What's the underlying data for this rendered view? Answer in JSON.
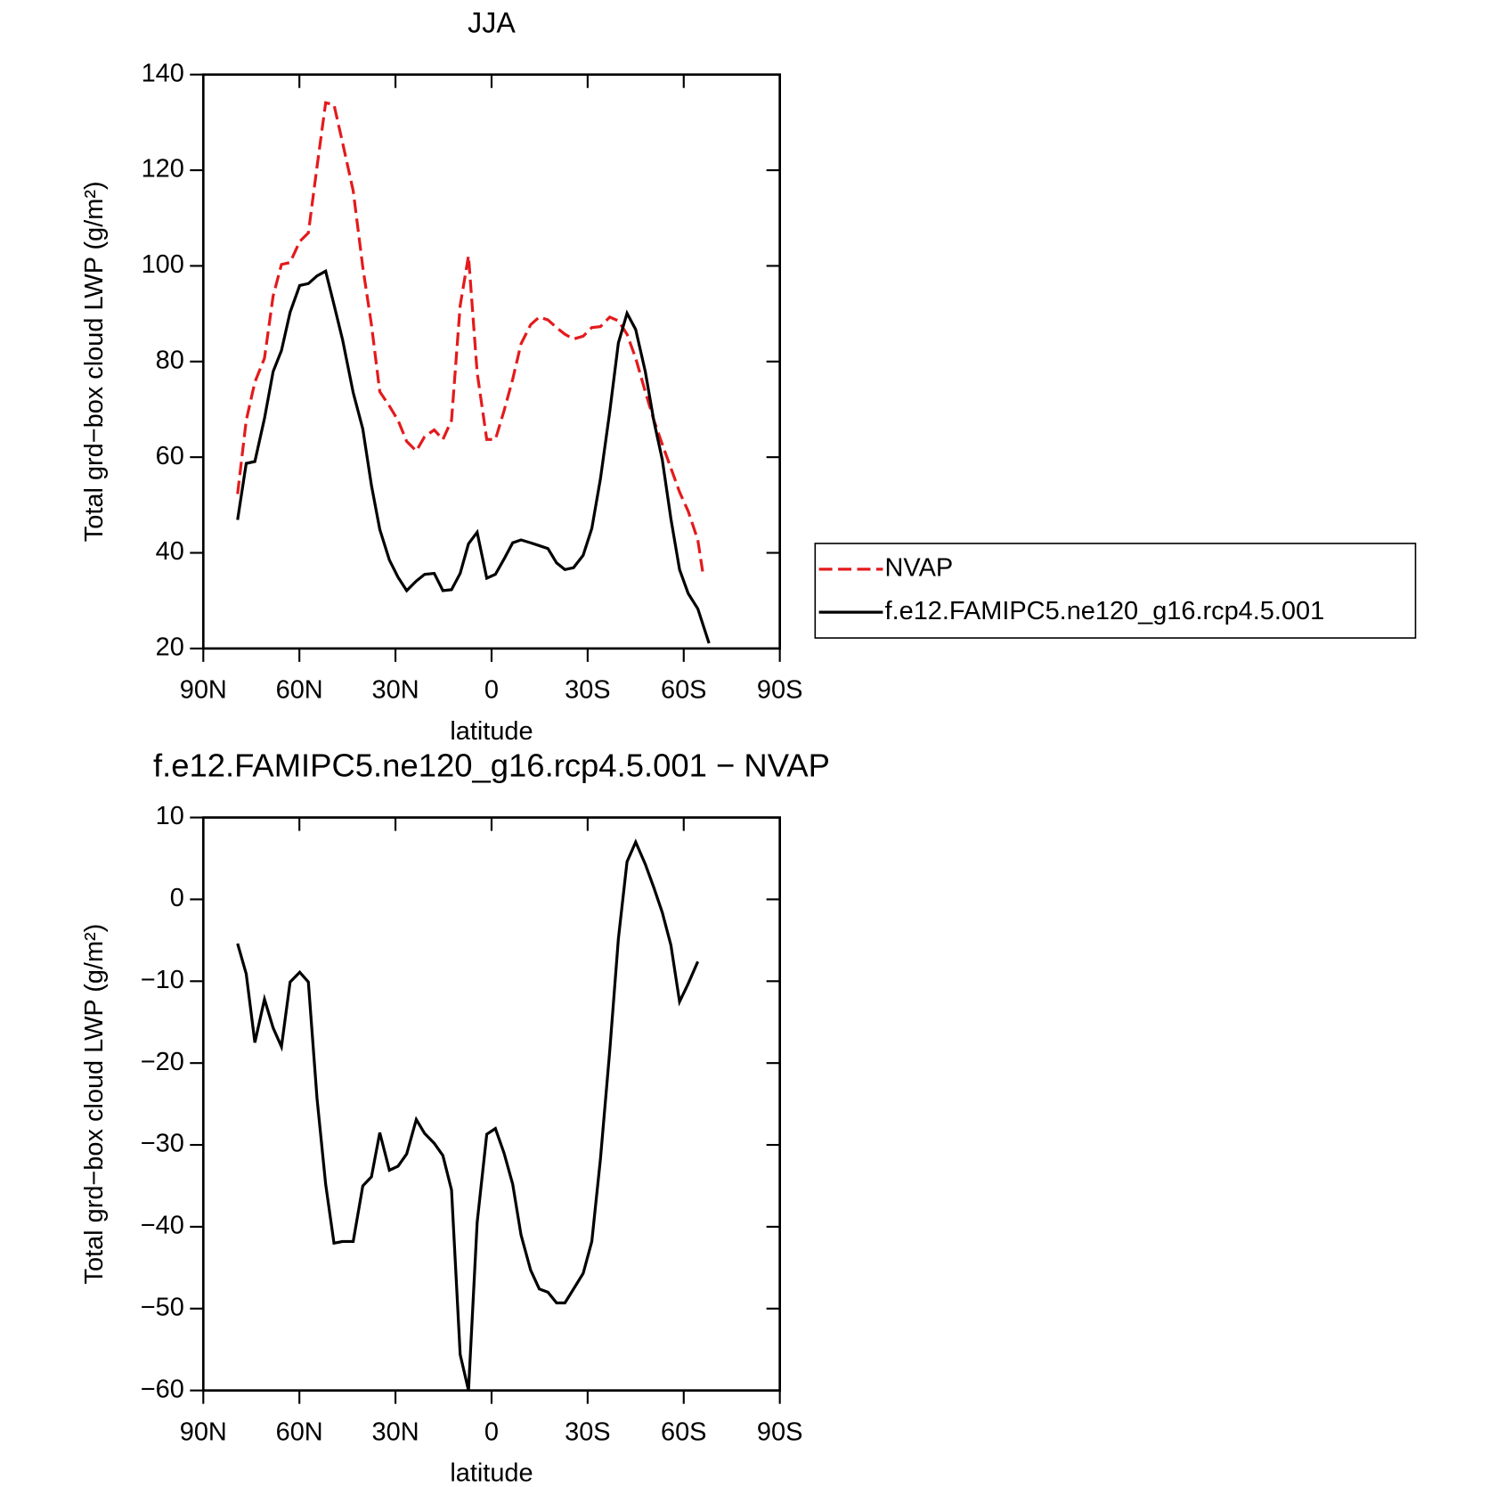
{
  "chart_data": [
    {
      "type": "line",
      "title": "JJA",
      "xlabel": "latitude",
      "ylabel": "Total grd−box cloud LWP (g/m²)",
      "xlim": [
        90,
        -90
      ],
      "xticks": [
        {
          "value": 90,
          "label": "90N"
        },
        {
          "value": 60,
          "label": "60N"
        },
        {
          "value": 30,
          "label": "30N"
        },
        0,
        {
          "value": -30,
          "label": "30S"
        },
        {
          "value": -60,
          "label": "60S"
        },
        {
          "value": -90,
          "label": "90S"
        }
      ],
      "ylim": [
        20,
        140
      ],
      "yticks": [
        20,
        40,
        60,
        80,
        100,
        120,
        140
      ],
      "legend": "right",
      "series": [
        {
          "name": "NVAP",
          "color": "#e41a1c",
          "style": "dashed",
          "x": [
            79.3,
            76.6,
            73.9,
            70.9,
            68.2,
            65.6,
            62.9,
            59.9,
            57.2,
            54.5,
            51.8,
            49.2,
            46.5,
            43.2,
            40.2,
            37.5,
            34.9,
            31.9,
            29.2,
            26.5,
            23.5,
            20.9,
            17.9,
            15.2,
            12.5,
            9.8,
            7.2,
            4.5,
            1.5,
            -1.2,
            -3.9,
            -6.6,
            -9.2,
            -12.2,
            -14.9,
            -17.6,
            -20.3,
            -22.9,
            -25.6,
            -28.6,
            -31.3,
            -34.0,
            -36.9,
            -39.6,
            -42.3,
            -45.0,
            -48.0,
            -50.7,
            -53.3,
            -56.0,
            -58.7,
            -61.4,
            -64.4,
            -65.9
          ],
          "values": [
            52.3,
            67.7,
            75.7,
            80.7,
            93.7,
            100.3,
            100.7,
            105.1,
            106.9,
            120.7,
            134.1,
            133.7,
            125.7,
            115.7,
            99.7,
            87.7,
            73.7,
            70.7,
            67.7,
            63.3,
            61.3,
            64.3,
            65.7,
            63.7,
            67.7,
            91.7,
            102.1,
            77.7,
            63.7,
            63.7,
            69.7,
            76.3,
            83.7,
            87.7,
            89.3,
            88.7,
            87.1,
            85.7,
            84.7,
            85.3,
            87.1,
            87.3,
            89.3,
            88.5,
            85.7,
            80.7,
            73.7,
            67.7,
            62.7,
            57.7,
            52.7,
            48.7,
            42.7,
            36.1
          ]
        },
        {
          "name": "f.e12.FAMIPC5.ne120_g16.rcp4.5.001",
          "color": "#000000",
          "style": "solid",
          "x": [
            79.3,
            76.6,
            73.9,
            70.9,
            68.2,
            65.6,
            62.9,
            59.9,
            57.2,
            54.5,
            51.8,
            49.2,
            46.5,
            43.2,
            40.2,
            37.5,
            34.9,
            31.9,
            29.2,
            26.5,
            23.5,
            20.9,
            17.9,
            15.2,
            12.5,
            9.8,
            7.2,
            4.5,
            1.5,
            -1.2,
            -3.9,
            -6.6,
            -9.2,
            -12.2,
            -14.9,
            -17.6,
            -20.3,
            -22.9,
            -25.6,
            -28.6,
            -31.3,
            -34.0,
            -36.9,
            -39.6,
            -42.3,
            -45.0,
            -48.0,
            -50.7,
            -53.3,
            -56.0,
            -58.7,
            -61.4,
            -64.4,
            -67.9
          ],
          "values": [
            46.9,
            58.7,
            59.1,
            68.1,
            77.9,
            82.3,
            90.3,
            95.9,
            96.3,
            97.9,
            98.9,
            91.9,
            84.5,
            73.5,
            65.9,
            54.1,
            44.9,
            38.5,
            34.9,
            32.1,
            34.1,
            35.5,
            35.7,
            32.1,
            32.3,
            35.7,
            41.9,
            44.3,
            34.7,
            35.5,
            38.7,
            42.1,
            42.7,
            42.1,
            41.5,
            40.9,
            37.9,
            36.5,
            36.9,
            39.5,
            45.1,
            55.5,
            69.5,
            83.9,
            90.1,
            86.7,
            77.9,
            67.5,
            59.5,
            47.1,
            36.5,
            31.5,
            28.3,
            21.1
          ]
        }
      ]
    },
    {
      "type": "line",
      "title": "f.e12.FAMIPC5.ne120_g16.rcp4.5.001 − NVAP",
      "xlabel": "latitude",
      "ylabel": "Total grd−box cloud LWP (g/m²)",
      "xlim": [
        90,
        -90
      ],
      "xticks": [
        {
          "value": 90,
          "label": "90N"
        },
        {
          "value": 60,
          "label": "60N"
        },
        {
          "value": 30,
          "label": "30N"
        },
        0,
        {
          "value": -30,
          "label": "30S"
        },
        {
          "value": -60,
          "label": "60S"
        },
        {
          "value": -90,
          "label": "90S"
        }
      ],
      "ylim": [
        -60,
        10
      ],
      "yticks": [
        {
          "value": -60,
          "label": "−60"
        },
        {
          "value": -50,
          "label": "−50"
        },
        {
          "value": -40,
          "label": "−40"
        },
        {
          "value": -30,
          "label": "−30"
        },
        {
          "value": -20,
          "label": "−20"
        },
        {
          "value": -10,
          "label": "−10"
        },
        0,
        10
      ],
      "series": [
        {
          "color": "#000000",
          "style": "solid",
          "x": [
            79.3,
            76.6,
            73.9,
            70.9,
            68.2,
            65.6,
            62.9,
            59.9,
            57.2,
            54.5,
            51.8,
            49.2,
            46.5,
            43.2,
            40.2,
            37.5,
            34.9,
            31.9,
            29.2,
            26.5,
            23.5,
            20.9,
            17.9,
            15.2,
            12.5,
            9.8,
            7.2,
            4.5,
            1.5,
            -1.2,
            -3.9,
            -6.6,
            -9.2,
            -12.2,
            -14.9,
            -17.6,
            -20.3,
            -22.9,
            -25.6,
            -28.6,
            -31.3,
            -34.0,
            -36.9,
            -39.6,
            -42.3,
            -45.0,
            -48.0,
            -50.7,
            -53.3,
            -56.0,
            -58.7,
            -61.4,
            -64.4
          ],
          "values": [
            -5.4,
            -9.1,
            -17.5,
            -12.2,
            -15.7,
            -18.0,
            -10.1,
            -8.9,
            -10.1,
            -24.3,
            -34.8,
            -42.0,
            -41.8,
            -41.8,
            -35.0,
            -33.9,
            -28.5,
            -33.1,
            -32.6,
            -31.1,
            -26.9,
            -28.6,
            -29.8,
            -31.3,
            -35.5,
            -55.6,
            -60.0,
            -39.5,
            -28.7,
            -28.0,
            -31.0,
            -34.8,
            -41.0,
            -45.3,
            -47.6,
            -48.0,
            -49.3,
            -49.3,
            -47.6,
            -45.7,
            -41.8,
            -31.7,
            -18.5,
            -4.8,
            4.6,
            7.0,
            4.3,
            1.4,
            -1.6,
            -5.6,
            -12.5,
            -10.3,
            -7.6
          ]
        }
      ]
    }
  ]
}
